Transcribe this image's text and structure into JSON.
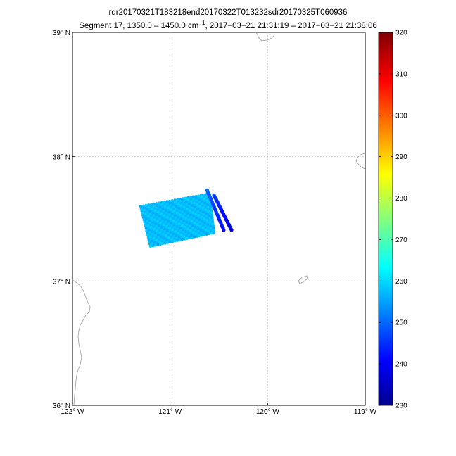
{
  "figure": {
    "title_line1": "rdr20170321T183218end20170322T013232sdr20170325T060936",
    "title_line2_pre": "Segment 17, 1350.0 – 1450.0 cm",
    "title_line2_sup": "−1",
    "title_line2_post": ", 2017−03−21 21:31:19 – 2017−03−21 21:38:06"
  },
  "map": {
    "lon_range": [
      -122,
      -119
    ],
    "lat_range": [
      36,
      39
    ],
    "lon_ticks": [
      {
        "value": -122,
        "label": "122° W"
      },
      {
        "value": -121,
        "label": "121° W"
      },
      {
        "value": -120,
        "label": "120° W"
      },
      {
        "value": -119,
        "label": "119° W"
      }
    ],
    "lat_ticks": [
      {
        "value": 39,
        "label": "39° N"
      },
      {
        "value": 38,
        "label": "38° N"
      },
      {
        "value": 37,
        "label": "37° N"
      },
      {
        "value": 36,
        "label": "36° N"
      }
    ],
    "grid": true,
    "grid_style": "dotted"
  },
  "colorbar": {
    "min": 230,
    "max": 320,
    "ticks": [
      230,
      240,
      250,
      260,
      270,
      280,
      290,
      300,
      310,
      320
    ],
    "colormap": "jet"
  },
  "chart_data": {
    "type": "scatter",
    "description_units": "lon/lat degrees, value = brightness temperature",
    "swath": {
      "corners": [
        [
          -121.3,
          37.6
        ],
        [
          -120.6,
          37.7
        ],
        [
          -120.55,
          37.39
        ],
        [
          -121.2,
          37.28
        ]
      ],
      "value": 258
    },
    "tracks": [
      {
        "start": [
          -120.62,
          37.73
        ],
        "end": [
          -120.45,
          37.41
        ],
        "values": [
          250,
          242
        ]
      },
      {
        "start": [
          -120.55,
          37.69
        ],
        "end": [
          -120.37,
          37.41
        ],
        "values": [
          247,
          238
        ]
      }
    ]
  }
}
